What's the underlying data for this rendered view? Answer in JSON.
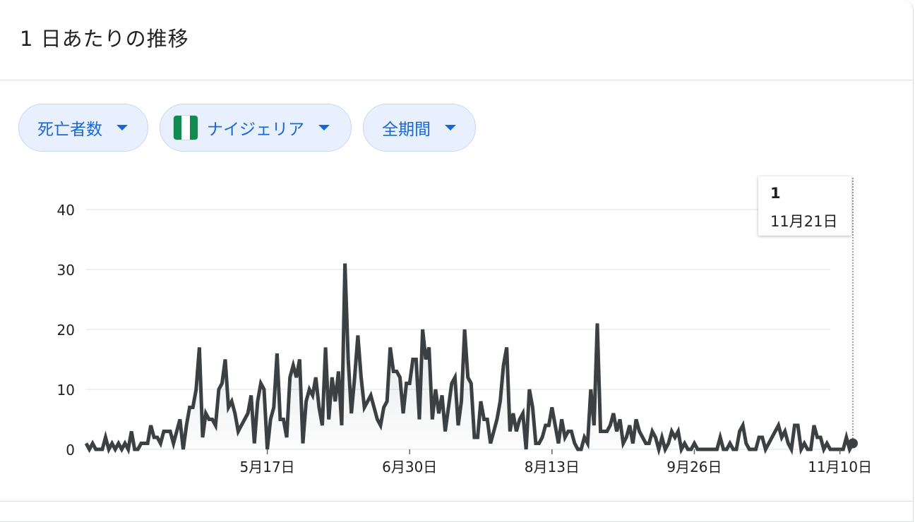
{
  "title": "1 日あたりの推移",
  "filters": {
    "metric": "死亡者数",
    "country": "ナイジェリア",
    "period": "全期間",
    "country_flag_icon": "nigeria-flag-icon"
  },
  "tooltip": {
    "value": "1",
    "date": "11月21日"
  },
  "colors": {
    "chip_bg": "#e8f0fe",
    "chip_text": "#1967d2",
    "line": "#3c4043"
  },
  "chart_data": {
    "type": "area",
    "title": "",
    "xlabel": "",
    "ylabel": "",
    "ylim": [
      0,
      40
    ],
    "yticks": [
      "0",
      "10",
      "20",
      "30",
      "40"
    ],
    "xticks": [
      {
        "label": "5月17日",
        "index": 56
      },
      {
        "label": "6月30日",
        "index": 100
      },
      {
        "label": "8月13日",
        "index": 144
      },
      {
        "label": "9月26日",
        "index": 188
      },
      {
        "label": "11月10日",
        "index": 233
      }
    ],
    "grid": true,
    "legend": "none",
    "values": [
      1,
      0,
      1,
      0,
      0,
      0,
      2,
      0,
      1,
      0,
      1,
      0,
      1,
      0,
      3,
      0,
      0,
      1,
      1,
      1,
      4,
      2,
      2,
      1,
      3,
      3,
      3,
      1,
      3,
      5,
      0,
      4,
      7,
      7,
      10,
      17,
      2,
      6,
      5,
      5,
      4,
      10,
      11,
      15,
      7,
      8,
      6,
      3,
      4,
      5,
      6,
      9,
      1,
      8,
      11,
      10,
      0,
      5,
      7,
      16,
      5,
      5,
      2,
      12,
      14,
      12,
      15,
      1,
      8,
      10,
      9,
      12,
      7,
      4,
      17,
      5,
      12,
      8,
      13,
      4,
      31,
      15,
      6,
      12,
      19,
      12,
      7,
      8,
      9,
      7,
      5,
      4,
      7,
      8,
      17,
      13,
      13,
      12,
      6,
      11,
      11,
      15,
      15,
      5,
      20,
      15,
      17,
      5,
      10,
      6,
      9,
      3,
      7,
      11,
      12,
      4,
      8,
      20,
      12,
      11,
      2,
      2,
      8,
      5,
      5,
      1,
      3,
      5,
      8,
      14,
      17,
      3,
      6,
      3,
      5,
      6,
      0,
      10,
      7,
      1,
      1,
      2,
      4,
      4,
      7,
      4,
      1,
      5,
      2,
      3,
      3,
      1,
      0,
      0,
      2,
      1,
      10,
      4,
      21,
      3,
      3,
      3,
      4,
      6,
      3,
      5,
      1,
      2,
      4,
      1,
      5,
      3,
      2,
      1,
      1,
      3,
      2,
      0,
      2,
      0,
      1,
      3,
      2,
      3,
      0,
      1,
      0,
      0,
      1,
      0,
      0,
      0,
      0,
      0,
      0,
      0,
      2,
      0,
      0,
      1,
      0,
      0,
      3,
      4,
      1,
      0,
      0,
      0,
      2,
      2,
      0,
      1,
      2,
      3,
      4,
      2,
      3,
      1,
      0,
      4,
      4,
      0,
      1,
      0,
      0,
      4,
      2,
      2,
      0,
      1,
      0,
      0,
      0,
      0,
      0,
      2,
      0,
      1
    ]
  }
}
